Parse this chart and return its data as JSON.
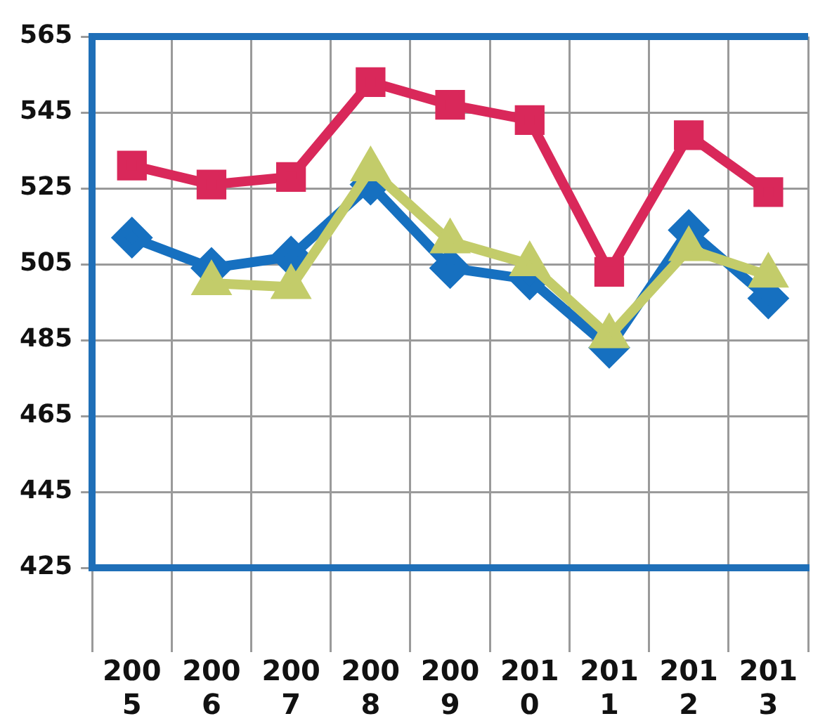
{
  "chart_data": {
    "type": "line",
    "categories": [
      "2005",
      "2006",
      "2007",
      "2008",
      "2009",
      "2010",
      "2011",
      "2012",
      "2013"
    ],
    "series": [
      {
        "color": "#d9285a",
        "marker": "square",
        "values": [
          531,
          526,
          528,
          553,
          547,
          543,
          503,
          539,
          524
        ]
      },
      {
        "color": "#1670c0",
        "marker": "diamond",
        "values": [
          512,
          504,
          507,
          526,
          504,
          501,
          483,
          514,
          496
        ]
      },
      {
        "color": "#c3cc6a",
        "marker": "triangle",
        "values": [
          null,
          500,
          499,
          530,
          511,
          505,
          486,
          509,
          502
        ]
      }
    ],
    "ylim": [
      425,
      565
    ],
    "yticks": [
      425,
      445,
      465,
      485,
      505,
      525,
      545,
      565
    ],
    "grid": true,
    "legend": false
  }
}
